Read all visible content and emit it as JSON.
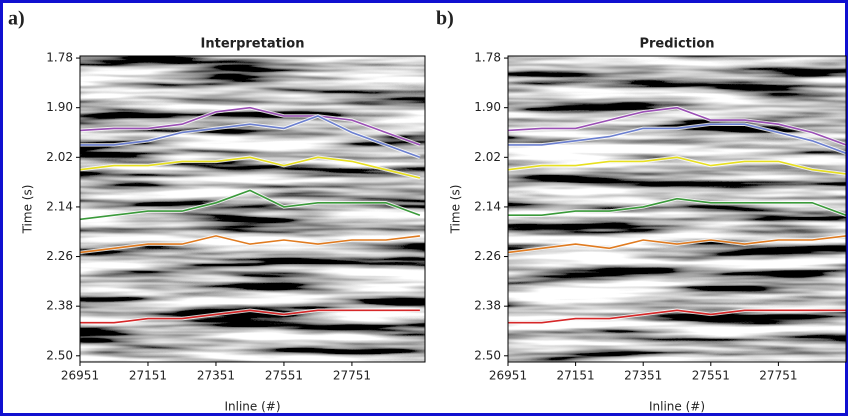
{
  "chart_data": [
    {
      "type": "line",
      "label": "a)",
      "title": "Interpretation",
      "xlabel": "Inline (#)",
      "ylabel": "Time (s)",
      "xlim": [
        26951,
        27966
      ],
      "ylim": [
        1.775,
        2.515
      ],
      "y_inverted": true,
      "xticks": [
        26951,
        27151,
        27351,
        27551,
        27751
      ],
      "yticks": [
        1.78,
        {
          "value": 1.9,
          "label": "1.90"
        },
        2.02,
        2.14,
        2.26,
        2.38,
        {
          "value": 2.5,
          "label": "2.50"
        }
      ],
      "x": [
        26951,
        27051,
        27151,
        27251,
        27351,
        27451,
        27551,
        27651,
        27751,
        27851,
        27951
      ],
      "series": [
        {
          "color": "#9a4fb5",
          "values": [
            1.955,
            1.95,
            1.95,
            1.94,
            1.91,
            1.9,
            1.92,
            1.92,
            1.93,
            1.96,
            1.99
          ]
        },
        {
          "color": "#6b7fd0",
          "values": [
            1.99,
            1.99,
            1.98,
            1.96,
            1.95,
            1.94,
            1.95,
            1.92,
            1.96,
            1.99,
            2.02
          ]
        },
        {
          "color": "#e8e020",
          "values": [
            2.05,
            2.04,
            2.04,
            2.03,
            2.03,
            2.02,
            2.04,
            2.02,
            2.03,
            2.05,
            2.07
          ]
        },
        {
          "color": "#3a9a3a",
          "values": [
            2.17,
            2.16,
            2.15,
            2.15,
            2.13,
            2.1,
            2.14,
            2.13,
            2.13,
            2.13,
            2.16
          ]
        },
        {
          "color": "#e07b20",
          "values": [
            2.25,
            2.24,
            2.23,
            2.23,
            2.21,
            2.23,
            2.22,
            2.23,
            2.22,
            2.22,
            2.21
          ]
        },
        {
          "color": "#d62728",
          "values": [
            2.42,
            2.42,
            2.41,
            2.41,
            2.4,
            2.39,
            2.4,
            2.39,
            2.39,
            2.39,
            2.39
          ]
        }
      ]
    },
    {
      "type": "line",
      "label": "b)",
      "title": "Prediction",
      "xlabel": "Inline (#)",
      "ylabel": "Time (s)",
      "xlim": [
        26951,
        27951
      ],
      "ylim": [
        1.775,
        2.515
      ],
      "y_inverted": true,
      "xticks": [
        26951,
        27151,
        27351,
        27551,
        27751
      ],
      "yticks": [
        1.78,
        {
          "value": 1.9,
          "label": "1.90"
        },
        2.02,
        2.14,
        2.26,
        2.38,
        {
          "value": 2.5,
          "label": "2.50"
        }
      ],
      "x": [
        26951,
        27051,
        27151,
        27251,
        27351,
        27451,
        27551,
        27651,
        27751,
        27851,
        27951
      ],
      "series": [
        {
          "color": "#9a4fb5",
          "values": [
            1.955,
            1.95,
            1.95,
            1.93,
            1.91,
            1.9,
            1.93,
            1.93,
            1.94,
            1.96,
            1.99
          ]
        },
        {
          "color": "#6b7fd0",
          "values": [
            1.99,
            1.99,
            1.98,
            1.97,
            1.95,
            1.95,
            1.94,
            1.94,
            1.96,
            1.98,
            2.01
          ]
        },
        {
          "color": "#e8e020",
          "values": [
            2.05,
            2.04,
            2.04,
            2.03,
            2.03,
            2.02,
            2.04,
            2.03,
            2.03,
            2.05,
            2.06
          ]
        },
        {
          "color": "#3a9a3a",
          "values": [
            2.16,
            2.16,
            2.15,
            2.15,
            2.14,
            2.12,
            2.13,
            2.13,
            2.13,
            2.13,
            2.16
          ]
        },
        {
          "color": "#e07b20",
          "values": [
            2.25,
            2.24,
            2.23,
            2.24,
            2.22,
            2.23,
            2.22,
            2.23,
            2.22,
            2.22,
            2.21
          ]
        },
        {
          "color": "#d62728",
          "values": [
            2.42,
            2.42,
            2.41,
            2.41,
            2.4,
            2.39,
            2.4,
            2.39,
            2.39,
            2.39,
            2.39
          ]
        }
      ]
    }
  ]
}
